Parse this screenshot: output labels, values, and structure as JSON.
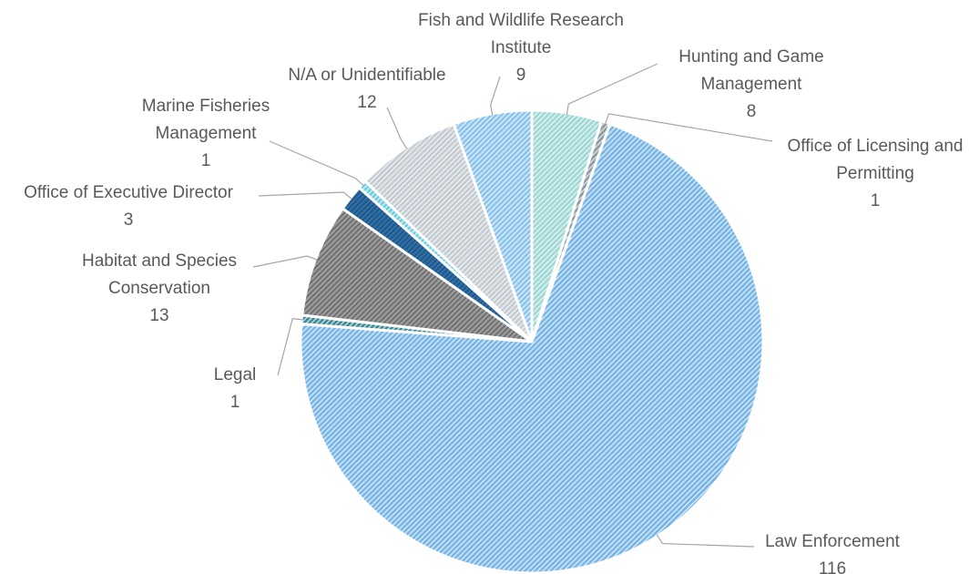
{
  "chart_data": {
    "type": "pie",
    "title": "",
    "legend": "none",
    "start_angle_deg": 0,
    "direction": "clockwise",
    "slices": [
      {
        "label": "Hunting and Game Management",
        "value": 8,
        "value_label": "8",
        "color": "#9fd8d4",
        "stripe": "#ffffff"
      },
      {
        "label": "Office of Licensing and Permitting",
        "value": 1,
        "value_label": "1",
        "color": "#8e9aa2",
        "stripe": "#ffffff"
      },
      {
        "label": "Law Enforcement",
        "value": 116,
        "value_label": "116",
        "color": "#78b6e8",
        "stripe": "#ffffff"
      },
      {
        "label": "Legal",
        "value": 1,
        "value_label": "1",
        "color": "#3c8a96",
        "stripe": "#ffffff"
      },
      {
        "label": "Habitat and Species Conservation",
        "value": 13,
        "value_label": "13",
        "color": "#9a9a9a",
        "stripe": "#333333"
      },
      {
        "label": "Office of Executive Director",
        "value": 3,
        "value_label": "3",
        "color": "#2f6fa8",
        "stripe": "#0d2f52"
      },
      {
        "label": "Marine Fisheries Management",
        "value": 1,
        "value_label": "1",
        "color": "#6ecde0",
        "stripe": "#ffffff"
      },
      {
        "label": "N/A or Unidentifiable",
        "value": 12,
        "value_label": "12",
        "color": "#c4ccd2",
        "stripe": "#ffffff"
      },
      {
        "label": "Fish and Wildlife Research Institute",
        "value": 9,
        "value_label": "9",
        "color": "#8cc4f0",
        "stripe": "#ffffff"
      }
    ]
  }
}
